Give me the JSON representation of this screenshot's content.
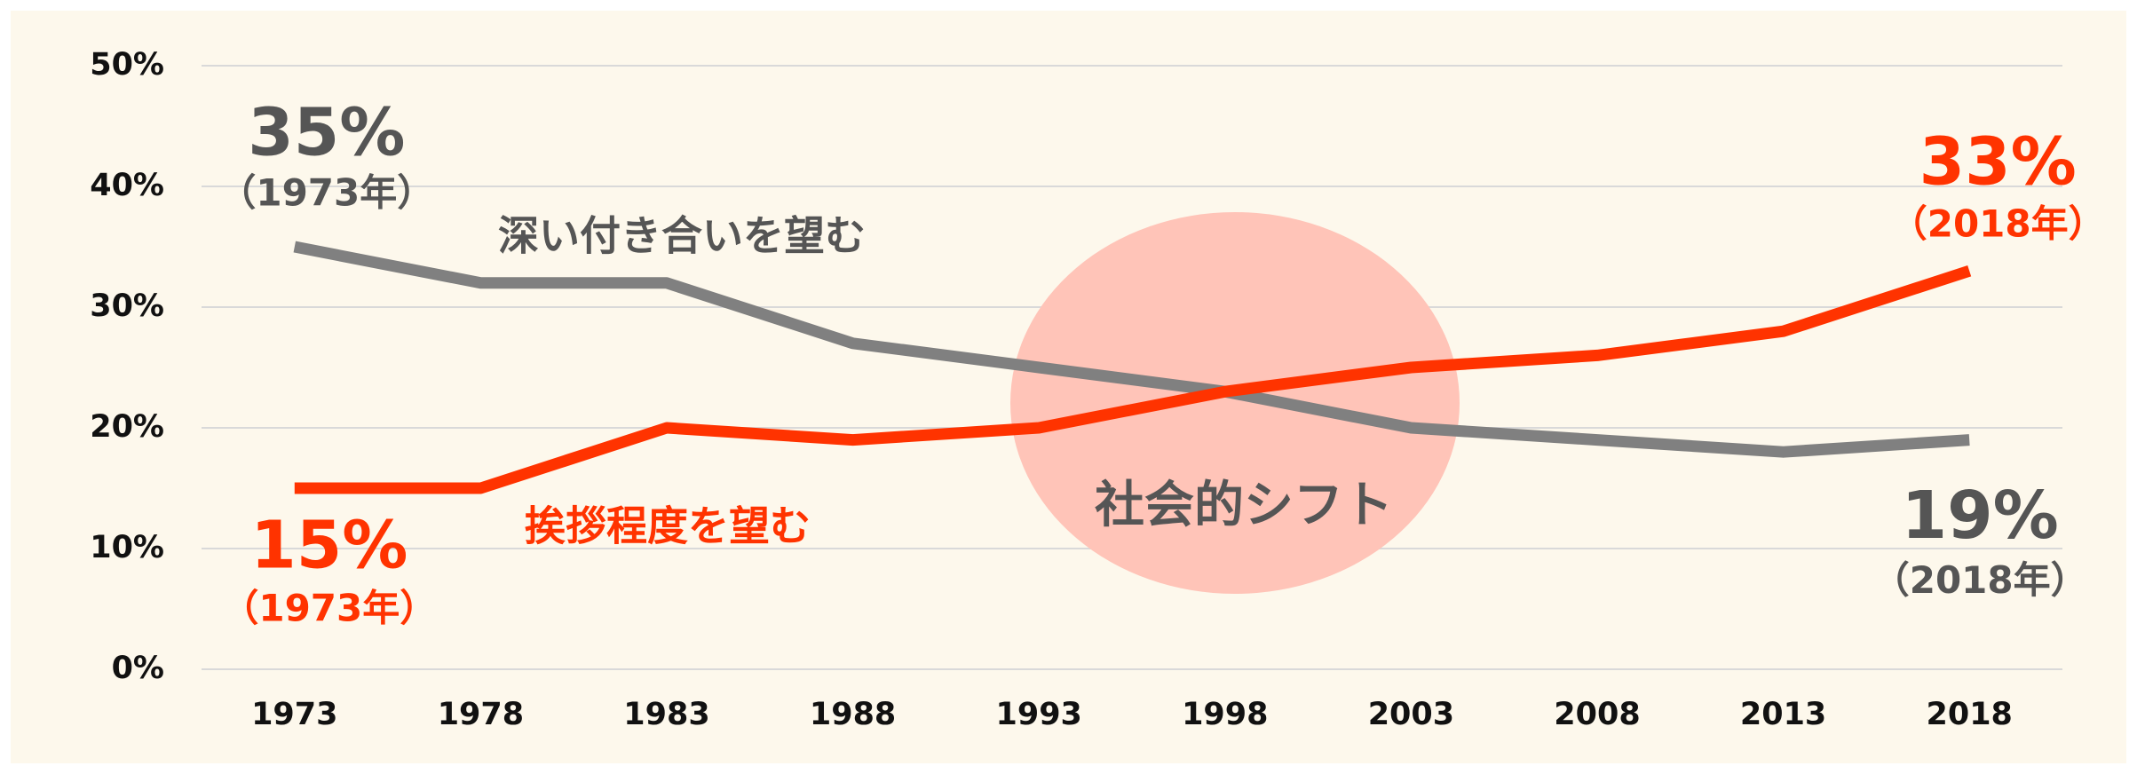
{
  "chart_data": {
    "type": "line",
    "categories": [
      "1973",
      "1978",
      "1983",
      "1988",
      "1993",
      "1998",
      "2003",
      "2008",
      "2013",
      "2018"
    ],
    "series": [
      {
        "name": "深い付き合いを望む",
        "color": "#808080",
        "values": [
          35,
          32,
          32,
          27,
          25,
          23,
          20,
          19,
          18,
          19
        ],
        "value_labels": [
          "35%",
          null,
          null,
          null,
          null,
          null,
          null,
          null,
          null,
          "19%"
        ],
        "value_label_notes": [
          "（1973年）",
          null,
          null,
          null,
          null,
          null,
          null,
          null,
          null,
          "（2018年）"
        ],
        "label_color": "#555555"
      },
      {
        "name": "挨拶程度を望む",
        "color": "#ff3300",
        "values": [
          15,
          15,
          20,
          19,
          20,
          23,
          25,
          26,
          28,
          33
        ],
        "value_labels": [
          "15%",
          null,
          null,
          null,
          null,
          null,
          null,
          null,
          null,
          "33%"
        ],
        "value_label_notes": [
          "（1973年）",
          null,
          null,
          null,
          null,
          null,
          null,
          null,
          null,
          "（2018年）"
        ],
        "label_color": "#ff3300"
      }
    ],
    "annotation": "社会的シフト",
    "ylim": [
      0,
      50
    ],
    "yticks": [
      {
        "value": 0,
        "label": "0%"
      },
      {
        "value": 10,
        "label": "10%"
      },
      {
        "value": 20,
        "label": "20%"
      },
      {
        "value": 30,
        "label": "30%"
      },
      {
        "value": 40,
        "label": "40%"
      },
      {
        "value": 50,
        "label": "50%"
      }
    ],
    "grid": true
  }
}
